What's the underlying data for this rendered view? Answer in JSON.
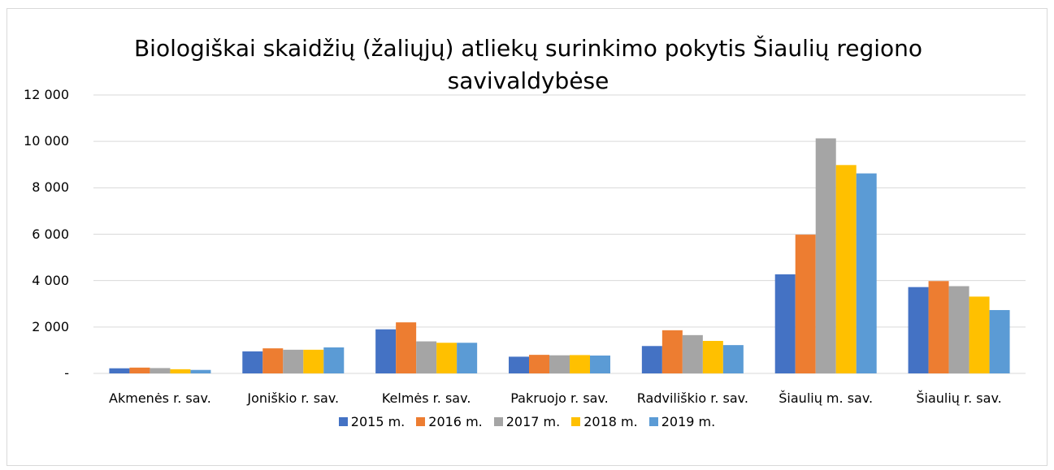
{
  "chart_data": {
    "type": "bar",
    "title": "Biologiškai skaidžių (žaliųjų) atliekų surinkimo pokytis Šiaulių regiono savivaldybėse",
    "categories": [
      "Akmenės r. sav.",
      "Joniškio r. sav.",
      "Kelmės r. sav.",
      "Pakruojo r. sav.",
      "Radviliškio r. sav.",
      "Šiaulių m. sav.",
      "Šiaulių r. sav."
    ],
    "series": [
      {
        "name": "2015 m.",
        "color": "#4472c4",
        "values": [
          220,
          950,
          1900,
          720,
          1180,
          4270,
          3720
        ]
      },
      {
        "name": "2016 m.",
        "color": "#ed7d31",
        "values": [
          250,
          1080,
          2200,
          800,
          1860,
          5980,
          3980
        ]
      },
      {
        "name": "2017 m.",
        "color": "#a5a5a5",
        "values": [
          230,
          1020,
          1380,
          780,
          1650,
          10130,
          3760
        ]
      },
      {
        "name": "2018 m.",
        "color": "#ffc000",
        "values": [
          180,
          1020,
          1320,
          790,
          1400,
          8980,
          3310
        ]
      },
      {
        "name": "2019 m.",
        "color": "#5b9bd5",
        "values": [
          150,
          1120,
          1320,
          770,
          1220,
          8620,
          2730
        ]
      }
    ],
    "ylim": [
      0,
      12000
    ],
    "yticks": [
      {
        "value": 0,
        "label": "-"
      },
      {
        "value": 2000,
        "label": "2 000"
      },
      {
        "value": 4000,
        "label": "4 000"
      },
      {
        "value": 6000,
        "label": "6 000"
      },
      {
        "value": 8000,
        "label": "8 000"
      },
      {
        "value": 10000,
        "label": "10 000"
      },
      {
        "value": 12000,
        "label": "12 000"
      }
    ],
    "grid": true,
    "legend": "bottom"
  }
}
